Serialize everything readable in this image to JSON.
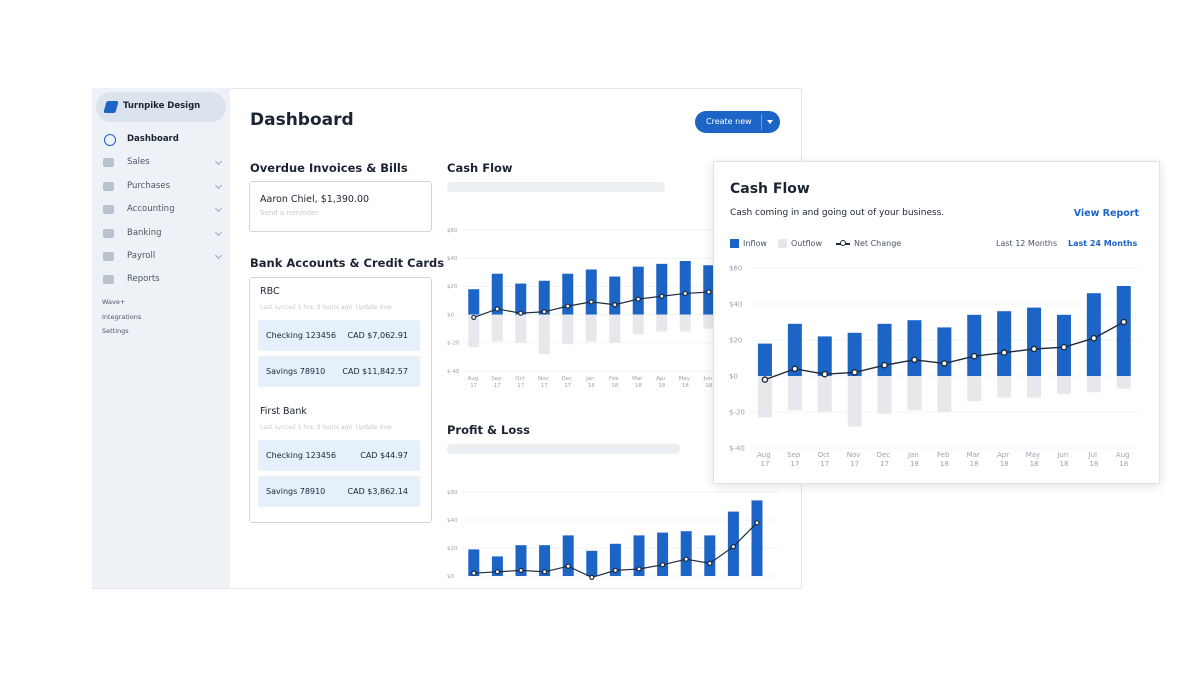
{
  "sidebar": {
    "company": "Turnpike Design",
    "items": [
      "Dashboard",
      "Sales",
      "Purchases",
      "Accounting",
      "Banking",
      "Payroll",
      "Reports"
    ],
    "links": [
      "Wave+",
      "Integrations",
      "Settings"
    ]
  },
  "dashboard": {
    "title": "Dashboard",
    "button": "Create new",
    "overdue": {
      "title": "Overdue Invoices & Bills",
      "entry": "Aaron Chiel, $1,390.00",
      "action": "Send a reminder"
    },
    "banks": {
      "title": "Bank Accounts & Credit Cards",
      "groups": [
        {
          "name": "RBC",
          "sync": "Last synced 1 hrs, 3 hours ago. Update now",
          "accounts": [
            [
              "Checking 123456",
              "CAD $7,062.91"
            ],
            [
              "Savings 78910",
              "CAD $11,842.57"
            ]
          ]
        },
        {
          "name": "First Bank",
          "sync": "Last synced 1 hrs, 3 hours ago. Update now",
          "accounts": [
            [
              "Checking 123456",
              "CAD $44.97"
            ],
            [
              "Savings 78910",
              "CAD $3,862.14"
            ]
          ]
        }
      ]
    }
  },
  "chart_data": [
    {
      "type": "bar",
      "title": "Cash Flow",
      "categories": [
        "Aug 17",
        "Sep 17",
        "Oct 17",
        "Nov 17",
        "Dec 17",
        "Jan 18",
        "Feb 18",
        "Mar 18",
        "Apr 18",
        "May 18",
        "Jun 18"
      ],
      "series": [
        {
          "type": "bar",
          "color": "#1c64c6",
          "values": [
            18,
            29,
            22,
            24,
            29,
            32,
            27,
            34,
            36,
            38,
            35
          ]
        },
        {
          "type": "bar",
          "color": "#e6e8eb",
          "values": [
            -23,
            -19,
            -20,
            -28,
            -21,
            -19,
            -20,
            -14,
            -12,
            -12,
            -10
          ]
        },
        {
          "type": "line",
          "color": "#1f2a3c",
          "values": [
            -2,
            4,
            1,
            2,
            6,
            9,
            7,
            11,
            13,
            15,
            16
          ]
        }
      ],
      "ylim": [
        -40,
        60
      ],
      "yticks": [
        {
          "value": 60,
          "label": "$60"
        },
        {
          "value": 40,
          "label": "$40"
        },
        {
          "value": 20,
          "label": "$20"
        },
        {
          "value": 0,
          "label": "$0"
        },
        {
          "value": -20,
          "label": "$-20"
        },
        {
          "value": -40,
          "label": "$-40"
        }
      ],
      "grid": true
    },
    {
      "type": "bar",
      "title": "Profit & Loss",
      "series": [
        {
          "type": "bar",
          "color": "#1c64c6",
          "values": [
            19,
            14,
            22,
            22,
            29,
            18,
            23,
            29,
            31,
            32,
            29,
            46,
            54
          ]
        },
        {
          "type": "line",
          "color": "#1f2a3c",
          "values": [
            2,
            3,
            4,
            3,
            7,
            -1,
            4,
            5,
            8,
            12,
            9,
            21,
            38
          ]
        }
      ],
      "ylim": [
        0,
        60
      ],
      "yticks": [
        {
          "value": 60,
          "label": "$60"
        },
        {
          "value": 40,
          "label": "$40"
        },
        {
          "value": 20,
          "label": "$20"
        },
        {
          "value": 0,
          "label": "$0"
        }
      ],
      "grid": true
    },
    {
      "type": "bar",
      "title": "Cash Flow",
      "subtitle": "Cash coming in and going out of your business.",
      "link": "View Report",
      "ranges": [
        "Last 12 Months",
        "Last 24 Months"
      ],
      "categories": [
        "Aug 17",
        "Sep 17",
        "Oct 17",
        "Nov 17",
        "Dec 17",
        "Jan 18",
        "Feb 18",
        "Mar 18",
        "Apr 18",
        "May 18",
        "Jun 18",
        "Jul 18",
        "Aug 18"
      ],
      "series": [
        {
          "name": "Inflow",
          "type": "bar",
          "color": "#1c64c6",
          "values": [
            18,
            29,
            22,
            24,
            29,
            31,
            27,
            34,
            36,
            38,
            34,
            46,
            50
          ]
        },
        {
          "name": "Outflow",
          "type": "bar",
          "color": "#e6e8eb",
          "values": [
            -23,
            -19,
            -20,
            -28,
            -21,
            -19,
            -20,
            -14,
            -12,
            -12,
            -10,
            -9,
            -7
          ]
        },
        {
          "name": "Net Change",
          "type": "line",
          "color": "#1f2a3c",
          "values": [
            -2,
            4,
            1,
            2,
            6,
            9,
            7,
            11,
            13,
            15,
            16,
            21,
            30
          ]
        }
      ],
      "ylim": [
        -40,
        60
      ],
      "yticks": [
        {
          "value": 60,
          "label": "$60"
        },
        {
          "value": 40,
          "label": "$40"
        },
        {
          "value": 20,
          "label": "$20"
        },
        {
          "value": 0,
          "label": "$0"
        },
        {
          "value": -20,
          "label": "$-20"
        },
        {
          "value": -40,
          "label": "$-40"
        }
      ],
      "grid": true
    }
  ]
}
